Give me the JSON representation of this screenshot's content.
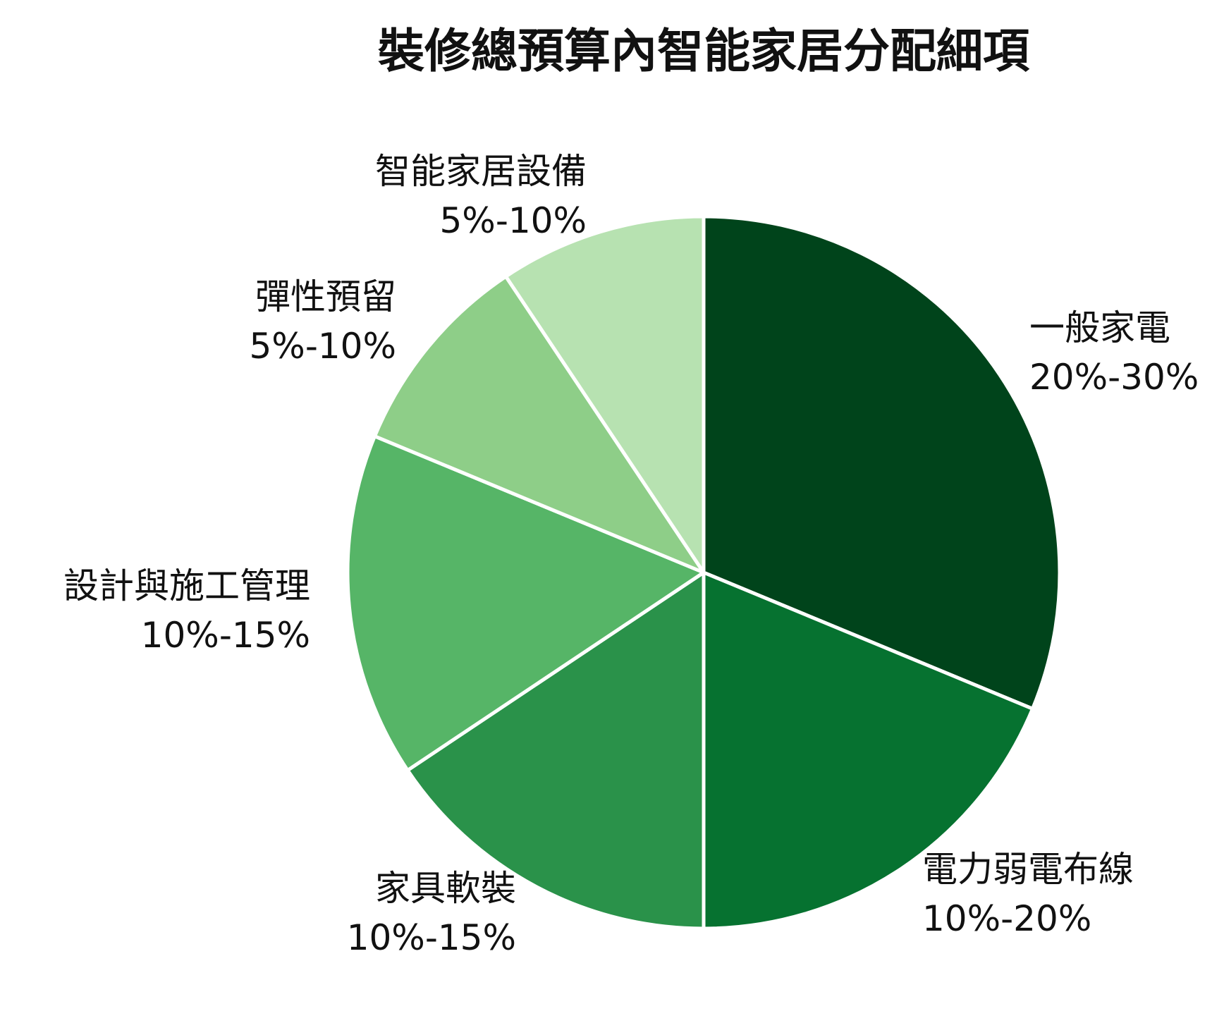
{
  "chart_data": {
    "type": "pie",
    "title": "裝修總預算內智能家居分配細項",
    "slices": [
      {
        "label": "一般家電",
        "range": "20%-30%",
        "value": 25,
        "color": "#00441b"
      },
      {
        "label": "電力弱電布線",
        "range": "10%-20%",
        "value": 15,
        "color": "#067230"
      },
      {
        "label": "家具軟裝",
        "range": "10%-15%",
        "value": 12.5,
        "color": "#2a924a"
      },
      {
        "label": "設計與施工管理",
        "range": "10%-15%",
        "value": 12.5,
        "color": "#56b567"
      },
      {
        "label": "彈性預留",
        "range": "5%-10%",
        "value": 7.5,
        "color": "#8ece88"
      },
      {
        "label": "智能家居設備",
        "range": "5%-10%",
        "value": 7.5,
        "color": "#b7e2b1"
      }
    ],
    "start_angle": "12 o'clock",
    "direction": "clockwise",
    "legend": "none"
  }
}
